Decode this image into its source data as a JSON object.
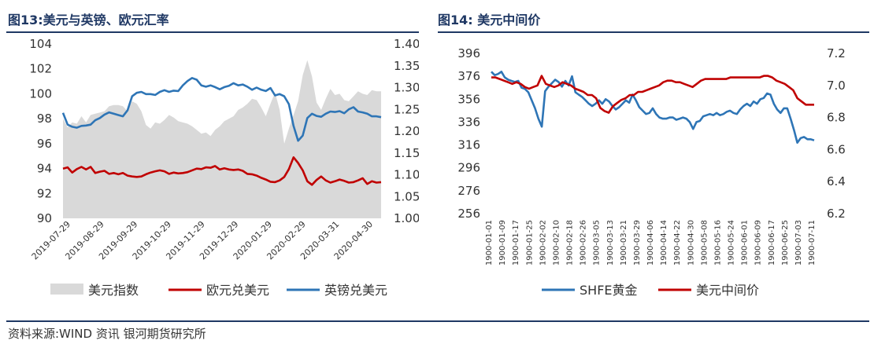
{
  "chart_data": [
    {
      "type": "line",
      "title": "图13:美元与英镑、欧元汇率",
      "x_ticks": [
        "2019-07-29",
        "2019-08-29",
        "2019-09-29",
        "2019-10-29",
        "2019-11-29",
        "2019-12-29",
        "2020-01-29",
        "2020-02-29",
        "2020-03-31",
        "2020-04-30"
      ],
      "y_left": {
        "ticks": [
          "104",
          "102",
          "100",
          "98",
          "96",
          "94",
          "92",
          "90"
        ],
        "min": 90,
        "max": 104
      },
      "y_right": {
        "ticks": [
          "1.40",
          "1.35",
          "1.30",
          "1.25",
          "1.20",
          "1.15",
          "1.10",
          "1.05",
          "1.00"
        ],
        "min": 1.0,
        "max": 1.4
      },
      "grid": false,
      "legend_position": "bottom",
      "series": [
        {
          "name": "美元指数",
          "kind": "area",
          "axis": "left",
          "color": "#d9d9d9",
          "values": [
            98.0,
            97.3,
            97.7,
            97.6,
            98.2,
            97.7,
            98.3,
            98.4,
            98.5,
            98.6,
            99.0,
            99.1,
            99.1,
            99.0,
            98.6,
            99.4,
            99.2,
            98.6,
            97.5,
            97.2,
            97.7,
            97.6,
            97.9,
            98.3,
            98.1,
            97.8,
            97.7,
            97.6,
            97.4,
            97.1,
            96.8,
            96.9,
            96.6,
            97.1,
            97.4,
            97.8,
            98.0,
            98.2,
            98.7,
            98.9,
            99.2,
            99.6,
            99.5,
            98.9,
            98.2,
            99.2,
            100.1,
            98.7,
            96.0,
            97.2,
            98.3,
            99.4,
            101.5,
            102.7,
            101.4,
            99.3,
            98.7,
            99.6,
            100.4,
            99.9,
            100.0,
            99.5,
            99.4,
            99.8,
            100.2,
            100.0,
            99.9,
            100.3,
            100.2,
            100.2
          ]
        },
        {
          "name": "欧元兑美元",
          "kind": "line",
          "axis": "right",
          "color": "#c00000",
          "values": [
            1.114,
            1.117,
            1.105,
            1.113,
            1.118,
            1.112,
            1.118,
            1.104,
            1.107,
            1.109,
            1.102,
            1.104,
            1.101,
            1.104,
            1.098,
            1.096,
            1.095,
            1.096,
            1.101,
            1.105,
            1.108,
            1.11,
            1.108,
            1.102,
            1.105,
            1.103,
            1.104,
            1.106,
            1.11,
            1.114,
            1.113,
            1.117,
            1.116,
            1.12,
            1.112,
            1.115,
            1.112,
            1.111,
            1.112,
            1.109,
            1.102,
            1.101,
            1.098,
            1.093,
            1.089,
            1.084,
            1.083,
            1.087,
            1.095,
            1.113,
            1.14,
            1.127,
            1.11,
            1.085,
            1.077,
            1.088,
            1.096,
            1.087,
            1.082,
            1.085,
            1.089,
            1.086,
            1.082,
            1.083,
            1.087,
            1.092,
            1.079,
            1.085,
            1.082,
            1.083
          ]
        },
        {
          "name": "英镑兑美元",
          "kind": "line",
          "axis": "right",
          "color": "#2e75b6",
          "values": [
            1.242,
            1.215,
            1.21,
            1.208,
            1.212,
            1.213,
            1.215,
            1.225,
            1.23,
            1.238,
            1.243,
            1.24,
            1.237,
            1.234,
            1.248,
            1.28,
            1.288,
            1.29,
            1.285,
            1.285,
            1.283,
            1.29,
            1.294,
            1.29,
            1.293,
            1.292,
            1.305,
            1.315,
            1.322,
            1.318,
            1.305,
            1.302,
            1.305,
            1.301,
            1.296,
            1.301,
            1.304,
            1.31,
            1.305,
            1.307,
            1.302,
            1.295,
            1.3,
            1.295,
            1.292,
            1.299,
            1.282,
            1.285,
            1.28,
            1.262,
            1.212,
            1.178,
            1.19,
            1.23,
            1.24,
            1.235,
            1.233,
            1.24,
            1.245,
            1.244,
            1.246,
            1.241,
            1.25,
            1.255,
            1.245,
            1.243,
            1.24,
            1.234,
            1.234,
            1.232
          ]
        }
      ]
    },
    {
      "type": "line",
      "title": "图14: 美元中间价",
      "x_ticks": [
        "1900-01-01",
        "1900-01-09",
        "1900-01-17",
        "1900-01-25",
        "1900-02-02",
        "1900-02-10",
        "1900-02-18",
        "1900-02-26",
        "1900-03-05",
        "1900-03-13",
        "1900-03-21",
        "1900-03-29",
        "1900-04-06",
        "1900-04-14",
        "1900-04-22",
        "1900-04-30",
        "1900-05-08",
        "1900-05-16",
        "1900-05-24",
        "1900-06-01",
        "1900-06-09",
        "1900-06-17",
        "1900-06-25",
        "1900-07-03",
        "1900-07-11"
      ],
      "y_left": {
        "ticks": [
          "396",
          "376",
          "356",
          "336",
          "316",
          "296",
          "276",
          "256"
        ],
        "min": 256,
        "max": 396
      },
      "y_right": {
        "ticks": [
          "7.2",
          "7.0",
          "6.8",
          "6.6",
          "6.4",
          "6.2"
        ],
        "min": 6.2,
        "max": 7.2
      },
      "grid": false,
      "legend_position": "bottom",
      "series": [
        {
          "name": "SHFE黄金",
          "kind": "line",
          "axis": "left",
          "color": "#2e75b6",
          "values": [
            380,
            377,
            378,
            380,
            375,
            373,
            372,
            371,
            372,
            366,
            365,
            362,
            355,
            348,
            339,
            332,
            363,
            367,
            370,
            373,
            371,
            367,
            372,
            368,
            376,
            362,
            360,
            358,
            355,
            352,
            350,
            352,
            355,
            352,
            356,
            354,
            350,
            347,
            349,
            352,
            355,
            353,
            360,
            355,
            349,
            346,
            343,
            344,
            348,
            343,
            340,
            339,
            339,
            340,
            340,
            338,
            339,
            340,
            339,
            336,
            330,
            336,
            337,
            341,
            342,
            343,
            342,
            344,
            342,
            343,
            345,
            346,
            344,
            343,
            347,
            350,
            352,
            350,
            354,
            352,
            356,
            357,
            361,
            360,
            352,
            347,
            344,
            348,
            348,
            339,
            329,
            318,
            322,
            323,
            321,
            321,
            320
          ]
        },
        {
          "name": "美元中间价",
          "kind": "line",
          "axis": "right",
          "color": "#c00000",
          "values": [
            7.05,
            7.05,
            7.04,
            7.03,
            7.02,
            7.01,
            7.02,
            7.01,
            6.99,
            6.98,
            6.99,
            7.0,
            7.06,
            7.01,
            7.0,
            6.99,
            7.0,
            7.02,
            7.01,
            7.0,
            6.98,
            6.97,
            6.96,
            6.94,
            6.94,
            6.92,
            6.86,
            6.84,
            6.83,
            6.87,
            6.89,
            6.91,
            6.92,
            6.94,
            6.94,
            6.96,
            6.96,
            6.97,
            6.98,
            6.99,
            7.0,
            7.02,
            7.03,
            7.03,
            7.02,
            7.02,
            7.01,
            7.0,
            6.99,
            7.01,
            7.03,
            7.04,
            7.04,
            7.04,
            7.04,
            7.04,
            7.04,
            7.05,
            7.05,
            7.05,
            7.05,
            7.05,
            7.05,
            7.05,
            7.05,
            7.06,
            7.06,
            7.05,
            7.03,
            7.02,
            7.01,
            6.99,
            6.97,
            6.92,
            6.9,
            6.88,
            6.88,
            6.88
          ]
        }
      ]
    }
  ],
  "titles": {
    "left": "图13:美元与英镑、欧元汇率",
    "right": "图14: 美元中间价"
  },
  "footer": {
    "source": "资料来源:WIND 资讯  银河期货研究所"
  }
}
